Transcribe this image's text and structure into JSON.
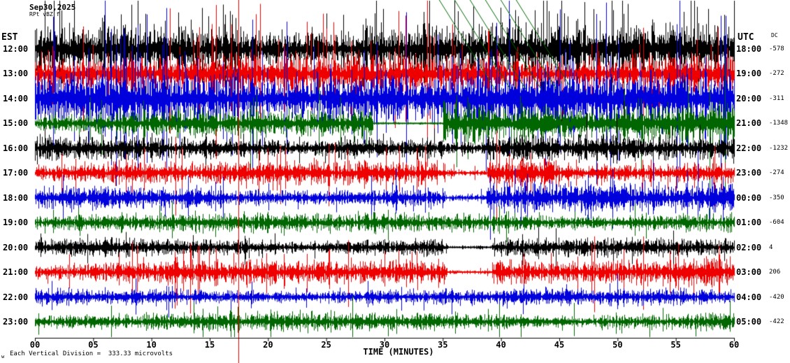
{
  "header": {
    "date": "Sep30,2025",
    "station_line": "RPt vBZ f"
  },
  "left_axis": {
    "label": "EST"
  },
  "right_axis": {
    "label": "UTC"
  },
  "dc_column": {
    "label": "DC"
  },
  "x_axis": {
    "label": "TIME (MINUTES)"
  },
  "footer": {
    "corner_mark": "w",
    "scale_note": "Each Vertical Division =  333.33 microvolts"
  },
  "chart_data": {
    "type": "line",
    "subtype": "seismogram-helicorder",
    "title": "Sep30,2025 webicorder display",
    "x_label": "TIME (MINUTES)",
    "x_range_minutes": [
      0,
      60
    ],
    "x_ticks": [
      "00",
      "05",
      "10",
      "15",
      "20",
      "25",
      "30",
      "35",
      "40",
      "45",
      "50",
      "55",
      "60"
    ],
    "vertical_division_microvolts": 333.33,
    "colors": {
      "black": "#000000",
      "red": "#ee0000",
      "blue": "#0000dd",
      "green": "#006600"
    },
    "rows": [
      {
        "est": "12:00",
        "utc": "18:00",
        "dc": "-578",
        "color": "#000000",
        "base": 15,
        "spike_prob": 0.2,
        "spike_mult": 2.2,
        "seed": 11
      },
      {
        "est": "13:00",
        "utc": "19:00",
        "dc": "-272",
        "color": "#ee0000",
        "base": 12,
        "spike_prob": 0.15,
        "spike_mult": 4.0,
        "seed": 22
      },
      {
        "est": "14:00",
        "utc": "20:00",
        "dc": "-311",
        "color": "#0000dd",
        "base": 18,
        "spike_prob": 0.15,
        "spike_mult": 2.8,
        "seed": 33
      },
      {
        "est": "15:00",
        "utc": "21:00",
        "dc": "-1348",
        "color": "#006600",
        "base": 9,
        "spike_prob": 0.06,
        "spike_mult": 2.0,
        "seed": 44,
        "quiet": [
          {
            "from": 29,
            "to": 35,
            "factor": 0.1
          }
        ],
        "boost": [
          {
            "from": 35,
            "to": 60,
            "factor": 1.7
          }
        ]
      },
      {
        "est": "16:00",
        "utc": "22:00",
        "dc": "-1232",
        "color": "#000000",
        "base": 8,
        "spike_prob": 0.05,
        "spike_mult": 1.6,
        "seed": 55,
        "quiet": [
          {
            "from": 35.2,
            "to": 38.8,
            "factor": 0.5
          }
        ]
      },
      {
        "est": "17:00",
        "utc": "23:00",
        "dc": "-274",
        "color": "#ee0000",
        "base": 7.5,
        "spike_prob": 0.08,
        "spike_mult": 2.2,
        "seed": 66,
        "quiet": [
          {
            "from": 35.2,
            "to": 38.8,
            "factor": 0.3
          }
        ],
        "boost": [
          {
            "from": 39,
            "to": 45,
            "factor": 1.6
          }
        ]
      },
      {
        "est": "18:00",
        "utc": "00:00",
        "dc": "-350",
        "color": "#0000dd",
        "base": 7,
        "spike_prob": 0.07,
        "spike_mult": 1.8,
        "seed": 77,
        "quiet": [
          {
            "from": 35.2,
            "to": 38.8,
            "factor": 0.3
          }
        ],
        "boost": [
          {
            "from": 39,
            "to": 60,
            "factor": 1.4
          }
        ]
      },
      {
        "est": "19:00",
        "utc": "01:00",
        "dc": "-604",
        "color": "#006600",
        "base": 6.5,
        "spike_prob": 0.05,
        "spike_mult": 1.5,
        "seed": 88
      },
      {
        "est": "20:00",
        "utc": "02:00",
        "dc": "4",
        "color": "#000000",
        "base": 6,
        "spike_prob": 0.05,
        "spike_mult": 1.4,
        "seed": 99,
        "quiet": [
          {
            "from": 35.4,
            "to": 39.2,
            "factor": 0.2
          }
        ]
      },
      {
        "est": "21:00",
        "utc": "03:00",
        "dc": "206",
        "color": "#ee0000",
        "base": 7.5,
        "spike_prob": 0.09,
        "spike_mult": 2.6,
        "seed": 110,
        "quiet": [
          {
            "from": 35.4,
            "to": 39.2,
            "factor": 0.2
          }
        ],
        "boost": [
          {
            "from": 39,
            "to": 60,
            "factor": 1.4
          }
        ]
      },
      {
        "est": "22:00",
        "utc": "04:00",
        "dc": "-420",
        "color": "#0000dd",
        "base": 5.5,
        "spike_prob": 0.05,
        "spike_mult": 1.4,
        "seed": 121
      },
      {
        "est": "23:00",
        "utc": "05:00",
        "dc": "-422",
        "color": "#006600",
        "base": 6,
        "spike_prob": 0.05,
        "spike_mult": 1.6,
        "seed": 132
      }
    ],
    "annotations": {
      "red_cursor_minute": 17.46,
      "red_cursor_color": "#dd0000",
      "hatch_region": {
        "from_minute": 34.7,
        "to_minute": 41.5,
        "color": "#006600"
      }
    }
  }
}
